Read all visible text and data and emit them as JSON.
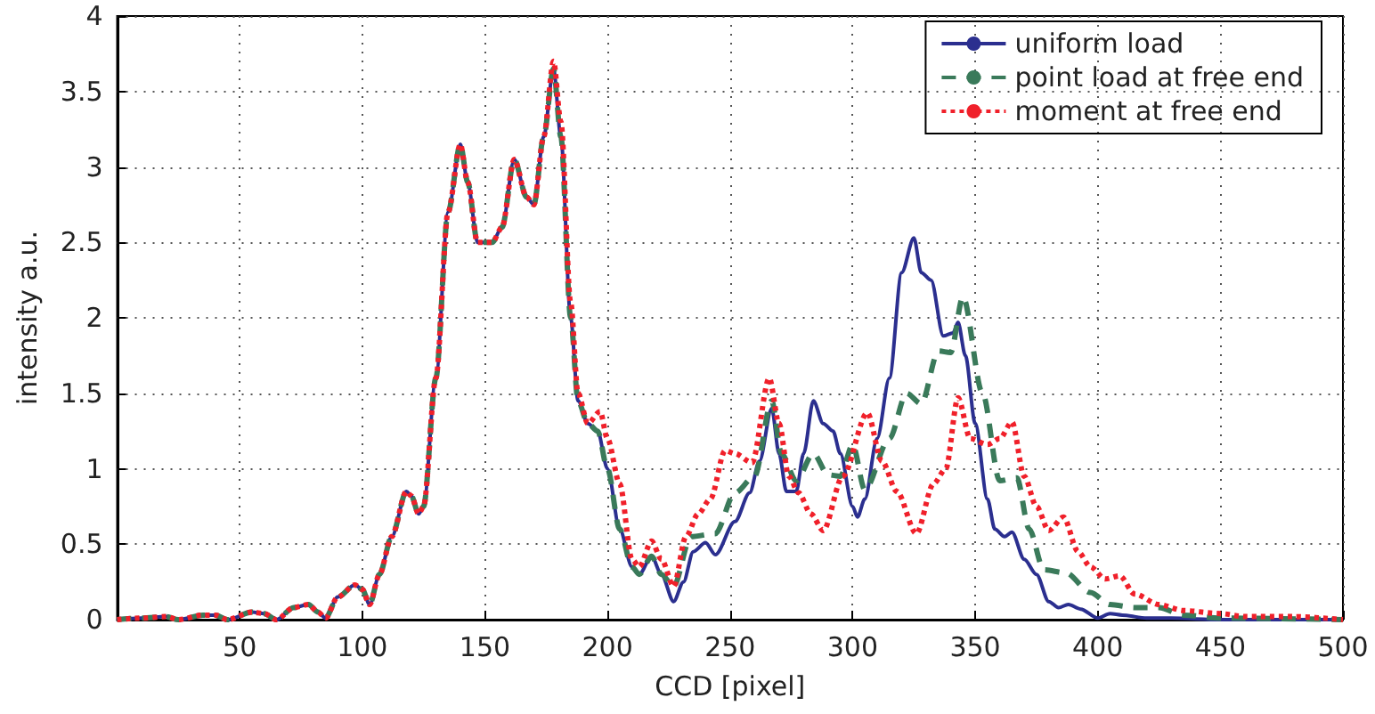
{
  "chart_data": {
    "type": "line",
    "xlabel": "CCD [pixel]",
    "ylabel": "intensity a.u.",
    "xlim": [
      0,
      500
    ],
    "xticks": [
      50,
      100,
      150,
      200,
      250,
      300,
      350,
      400,
      450,
      500
    ],
    "ylim": [
      0,
      4
    ],
    "yticks": [
      0,
      0.5,
      1,
      1.5,
      2,
      2.5,
      3,
      3.5,
      4
    ],
    "grid": true,
    "legend": "top right",
    "marker": "none",
    "series": [
      {
        "name": "uniform load",
        "color": "#2b2f8f",
        "line_style": "solid",
        "x": [
          0,
          10,
          20,
          25,
          35,
          40,
          45,
          55,
          60,
          65,
          72,
          78,
          82,
          85,
          90,
          97,
          100,
          103,
          107,
          112,
          118,
          120,
          123,
          125,
          130,
          135,
          140,
          143,
          147,
          150,
          153,
          157,
          162,
          167,
          170,
          174,
          178,
          181,
          185,
          188,
          192,
          196,
          200,
          205,
          210,
          213,
          218,
          222,
          227,
          231,
          235,
          240,
          244,
          252,
          258,
          262,
          267,
          270,
          273,
          277,
          280,
          284,
          288,
          292,
          295,
          300,
          302,
          305,
          310,
          315,
          320,
          325,
          328,
          332,
          337,
          341,
          343,
          346,
          350,
          355,
          358,
          362,
          365,
          370,
          375,
          380,
          384,
          388,
          393,
          400,
          405,
          410,
          420,
          430,
          450,
          500
        ],
        "values": [
          0,
          0.01,
          0.02,
          0,
          0.03,
          0.03,
          0,
          0.05,
          0.04,
          0,
          0.08,
          0.1,
          0.05,
          0.01,
          0.15,
          0.23,
          0.2,
          0.1,
          0.3,
          0.55,
          0.85,
          0.82,
          0.7,
          0.75,
          1.6,
          2.7,
          3.15,
          2.9,
          2.5,
          2.5,
          2.5,
          2.6,
          3.05,
          2.8,
          2.75,
          3.2,
          3.65,
          3.2,
          2.0,
          1.45,
          1.3,
          1.25,
          1.0,
          0.6,
          0.35,
          0.3,
          0.42,
          0.3,
          0.12,
          0.25,
          0.45,
          0.51,
          0.43,
          0.65,
          0.84,
          1.05,
          1.4,
          1.1,
          0.85,
          0.85,
          1.1,
          1.45,
          1.3,
          1.25,
          1.1,
          0.75,
          0.68,
          0.8,
          1.2,
          1.6,
          2.3,
          2.53,
          2.3,
          2.25,
          1.88,
          1.9,
          1.97,
          1.75,
          1.3,
          0.8,
          0.6,
          0.55,
          0.58,
          0.4,
          0.3,
          0.12,
          0.08,
          0.1,
          0.07,
          0.01,
          0.04,
          0.03,
          0.01,
          0.01,
          0,
          0
        ]
      },
      {
        "name": "point load at free end",
        "color": "#3a7a5a",
        "line_style": "dashed",
        "x": [
          0,
          10,
          20,
          25,
          35,
          40,
          45,
          55,
          60,
          65,
          72,
          78,
          82,
          85,
          90,
          97,
          100,
          103,
          107,
          112,
          118,
          120,
          123,
          125,
          130,
          135,
          140,
          143,
          147,
          150,
          153,
          157,
          162,
          167,
          170,
          174,
          178,
          181,
          185,
          188,
          192,
          196,
          200,
          205,
          210,
          213,
          218,
          222,
          227,
          234,
          244,
          252,
          260,
          267,
          271,
          277,
          284,
          290,
          295,
          300,
          305,
          315,
          322,
          328,
          335,
          340,
          345,
          353,
          360,
          367,
          372,
          378,
          387,
          397,
          405,
          415,
          425,
          435,
          450,
          500
        ],
        "values": [
          0,
          0.01,
          0.02,
          0,
          0.03,
          0.03,
          0,
          0.05,
          0.04,
          0,
          0.08,
          0.1,
          0.05,
          0.01,
          0.15,
          0.23,
          0.2,
          0.1,
          0.3,
          0.55,
          0.85,
          0.82,
          0.7,
          0.75,
          1.6,
          2.7,
          3.15,
          2.9,
          2.5,
          2.5,
          2.5,
          2.6,
          3.05,
          2.8,
          2.75,
          3.2,
          3.65,
          3.2,
          2.0,
          1.45,
          1.3,
          1.25,
          1.0,
          0.6,
          0.35,
          0.3,
          0.42,
          0.3,
          0.22,
          0.55,
          0.57,
          0.84,
          0.95,
          1.45,
          1.1,
          0.92,
          1.1,
          0.96,
          0.95,
          1.16,
          0.86,
          1.2,
          1.5,
          1.43,
          1.78,
          1.77,
          2.14,
          1.5,
          0.92,
          0.94,
          0.6,
          0.33,
          0.31,
          0.18,
          0.1,
          0.08,
          0.08,
          0.03,
          0.01,
          0
        ]
      },
      {
        "name": "moment at free end",
        "color": "#f0202a",
        "line_style": "dotted",
        "x": [
          0,
          10,
          20,
          25,
          35,
          40,
          45,
          55,
          60,
          65,
          72,
          78,
          82,
          85,
          90,
          97,
          100,
          103,
          107,
          112,
          118,
          120,
          123,
          125,
          130,
          135,
          140,
          143,
          147,
          150,
          153,
          157,
          162,
          167,
          170,
          174,
          178,
          181,
          185,
          188,
          192,
          197,
          200,
          205,
          210,
          213,
          218,
          222,
          227,
          232,
          237,
          242,
          248,
          252,
          259,
          266,
          270,
          274,
          278,
          283,
          288,
          296,
          306,
          312,
          318,
          326,
          333,
          338,
          343,
          348,
          355,
          360,
          365,
          370,
          375,
          380,
          386,
          392,
          397,
          403,
          409,
          415,
          425,
          435,
          450,
          460,
          480,
          500
        ],
        "values": [
          0,
          0.01,
          0.02,
          0,
          0.03,
          0.03,
          0,
          0.05,
          0.04,
          0,
          0.08,
          0.1,
          0.05,
          0.01,
          0.15,
          0.23,
          0.2,
          0.1,
          0.3,
          0.55,
          0.85,
          0.82,
          0.7,
          0.75,
          1.6,
          2.7,
          3.15,
          2.9,
          2.5,
          2.5,
          2.5,
          2.6,
          3.05,
          2.8,
          2.75,
          3.2,
          3.7,
          3.3,
          2.1,
          1.5,
          1.3,
          1.38,
          1.2,
          0.9,
          0.4,
          0.35,
          0.52,
          0.4,
          0.22,
          0.55,
          0.7,
          0.8,
          1.12,
          1.1,
          1.04,
          1.6,
          1.3,
          0.95,
          0.84,
          0.7,
          0.59,
          0.95,
          1.37,
          1.05,
          0.85,
          0.57,
          0.9,
          1.0,
          1.47,
          1.2,
          1.16,
          1.2,
          1.31,
          0.95,
          0.75,
          0.59,
          0.68,
          0.45,
          0.35,
          0.27,
          0.29,
          0.17,
          0.1,
          0.06,
          0.04,
          0.02,
          0.02,
          0
        ]
      }
    ]
  }
}
